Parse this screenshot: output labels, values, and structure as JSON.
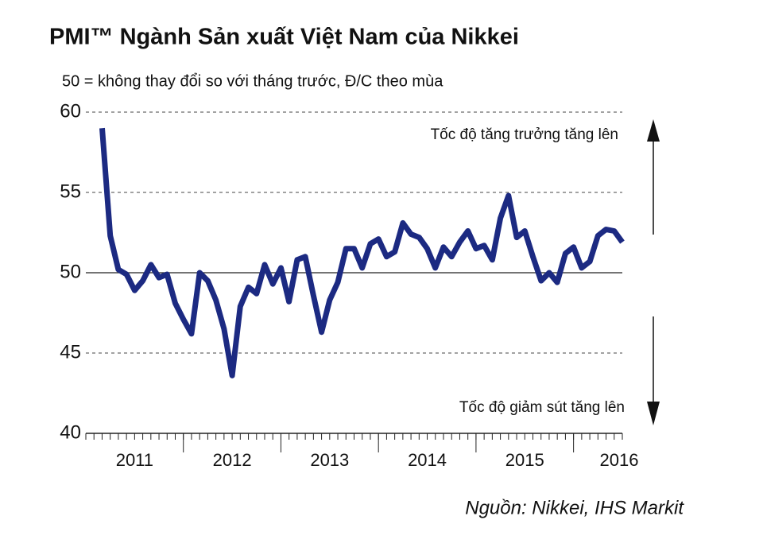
{
  "chart_data": {
    "type": "line",
    "title": "PMI™ Ngành Sản xuất Việt Nam của Nikkei",
    "subtitle": "50 = không thay đổi so với tháng trước, Đ/C theo mùa",
    "annotations": [
      "Tốc độ tăng trưởng tăng lên",
      "Tốc độ giảm sút tăng lên"
    ],
    "source": "Nguồn: Nikkei, IHS Markit",
    "x": [
      2011.167,
      2011.25,
      2011.333,
      2011.417,
      2011.5,
      2011.583,
      2011.667,
      2011.75,
      2011.833,
      2011.917,
      2012,
      2012.083,
      2012.167,
      2012.25,
      2012.333,
      2012.417,
      2012.5,
      2012.583,
      2012.667,
      2012.75,
      2012.833,
      2012.917,
      2013,
      2013.083,
      2013.167,
      2013.25,
      2013.333,
      2013.417,
      2013.5,
      2013.583,
      2013.667,
      2013.75,
      2013.833,
      2013.917,
      2014,
      2014.083,
      2014.167,
      2014.25,
      2014.333,
      2014.417,
      2014.5,
      2014.583,
      2014.667,
      2014.75,
      2014.833,
      2014.917,
      2015,
      2015.083,
      2015.167,
      2015.25,
      2015.333,
      2015.417,
      2015.5,
      2015.583,
      2015.667,
      2015.75,
      2015.833,
      2015.917,
      2016,
      2016.083,
      2016.167,
      2016.25,
      2016.333,
      2016.417,
      2016.5
    ],
    "series": [
      {
        "name": "PMI",
        "color": "#1c2a82",
        "values": [
          59.0,
          52.3,
          50.2,
          49.9,
          48.9,
          49.5,
          50.5,
          49.7,
          49.9,
          48.1,
          47.1,
          46.2,
          50.0,
          49.5,
          48.3,
          46.5,
          43.6,
          47.9,
          49.1,
          48.7,
          50.5,
          49.3,
          50.3,
          48.2,
          50.8,
          51.0,
          48.6,
          46.3,
          48.3,
          49.4,
          51.5,
          51.5,
          50.3,
          51.8,
          52.1,
          51.0,
          51.3,
          53.1,
          52.4,
          52.2,
          51.5,
          50.3,
          51.6,
          51.0,
          51.9,
          52.6,
          51.5,
          51.7,
          50.8,
          53.4,
          54.8,
          52.2,
          52.6,
          51.0,
          49.5,
          50.0,
          49.4,
          51.2,
          51.6,
          50.3,
          50.7,
          52.3,
          52.7,
          52.6,
          51.9
        ]
      }
    ],
    "xlim": [
      2011,
      2016.5
    ],
    "xticks": [
      2011,
      2012,
      2013,
      2014,
      2015,
      2016
    ],
    "ylim": [
      40,
      60
    ],
    "yticks": [
      40,
      45,
      50,
      55,
      60
    ],
    "grid": true,
    "grid_solid_at": 50
  }
}
